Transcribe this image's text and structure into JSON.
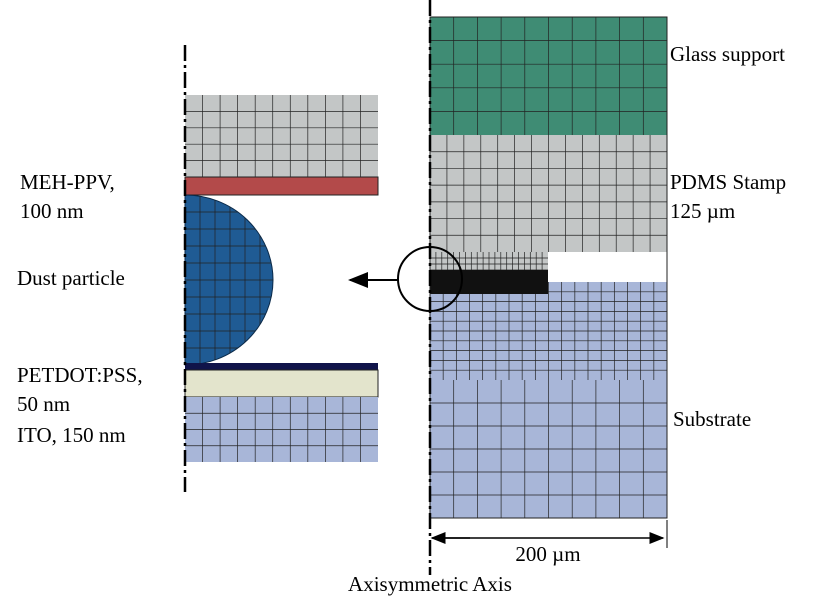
{
  "labels": {
    "glass_support": "Glass support",
    "pdms_stamp": "PDMS Stamp",
    "pdms_thickness": "125 µm",
    "substrate": "Substrate",
    "width": "200 µm",
    "axis": "Axisymmetric Axis",
    "meh_ppv": "MEH-PPV,",
    "meh_ppv_thickness": "100 nm",
    "dust": "Dust particle",
    "pedot": "PETDOT:PSS,",
    "pedot_thickness": "50 nm",
    "ito": "ITO, 150 nm"
  }
}
